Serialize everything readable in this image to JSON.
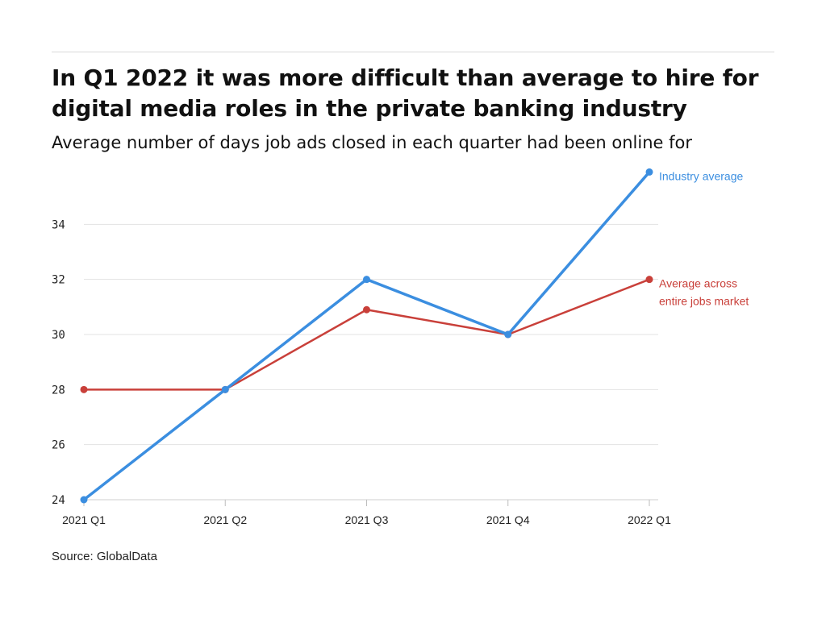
{
  "title": "In Q1 2022 it was more difficult than average to hire for digital media roles in the private banking industry",
  "subtitle": "Average number of days job ads closed in each quarter had been online for",
  "source": "Source: GlobalData",
  "chart_data": {
    "type": "line",
    "categories": [
      "2021 Q1",
      "2021 Q2",
      "2021 Q3",
      "2021 Q4",
      "2022 Q1"
    ],
    "ylim": [
      24,
      36
    ],
    "yticks": [
      24,
      26,
      28,
      30,
      32,
      34
    ],
    "grid": true,
    "series": [
      {
        "name": "Industry average",
        "label_lines": [
          "Industry average"
        ],
        "color": "#3b8ee0",
        "values": [
          24,
          28,
          32,
          30,
          35.9
        ]
      },
      {
        "name": "Average across entire jobs market",
        "label_lines": [
          "Average across",
          "entire jobs market"
        ],
        "color": "#c9403a",
        "values": [
          28,
          28,
          30.9,
          30,
          32
        ]
      }
    ]
  }
}
